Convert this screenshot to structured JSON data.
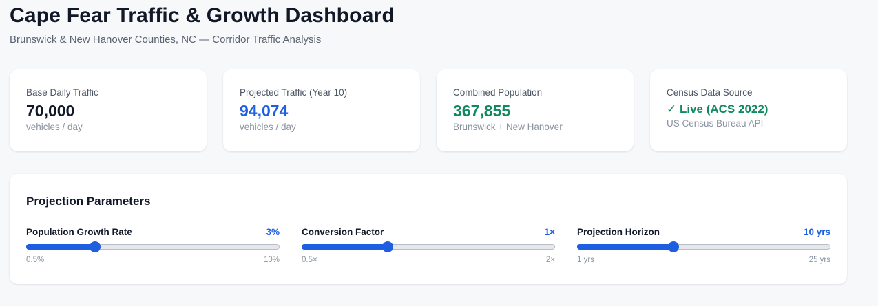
{
  "header": {
    "title": "Cape Fear Traffic & Growth Dashboard",
    "subtitle": "Brunswick & New Hanover Counties, NC — Corridor Traffic Analysis"
  },
  "stats": [
    {
      "label": "Base Daily Traffic",
      "value": "70,000",
      "sub": "vehicles / day",
      "tone": "dark"
    },
    {
      "label": "Projected Traffic (Year 10)",
      "value": "94,074",
      "sub": "vehicles / day",
      "tone": "blue"
    },
    {
      "label": "Combined Population",
      "value": "367,855",
      "sub": "Brunswick + New Hanover",
      "tone": "green"
    },
    {
      "label": "Census Data Source",
      "value": "✓ Live (ACS 2022)",
      "sub": "US Census Bureau API",
      "tone": "green"
    }
  ],
  "params": {
    "title": "Projection Parameters",
    "sliders": [
      {
        "label": "Population Growth Rate",
        "value": "3%",
        "min_label": "0.5%",
        "max_label": "10%",
        "fraction": 0.27
      },
      {
        "label": "Conversion Factor",
        "value": "1×",
        "min_label": "0.5×",
        "max_label": "2×",
        "fraction": 0.34
      },
      {
        "label": "Projection Horizon",
        "value": "10 yrs",
        "min_label": "1 yrs",
        "max_label": "25 yrs",
        "fraction": 0.38
      }
    ]
  },
  "colors": {
    "accent": "#1d5fe0",
    "positive": "#0f8a5f",
    "text": "#111827"
  }
}
